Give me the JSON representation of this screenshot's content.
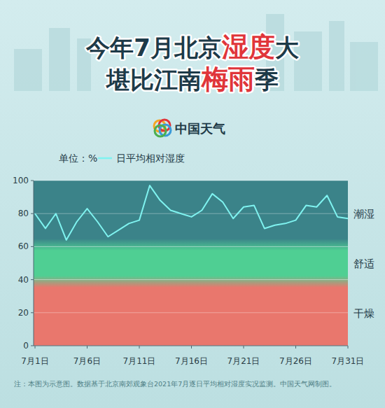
{
  "chart_data": {
    "type": "line",
    "title_lines": [
      [
        {
          "text": "今年7月北京"
        },
        {
          "text": "湿度",
          "color": "#e0353a"
        },
        {
          "text": "大"
        }
      ],
      [
        {
          "text": "堪比江南"
        },
        {
          "text": "梅雨",
          "color": "#e0353a"
        },
        {
          "text": "季"
        }
      ]
    ],
    "logo": "中国天气",
    "y_label": "单位：%",
    "categories": [
      "7月1日",
      null,
      null,
      null,
      null,
      "7月6日",
      null,
      null,
      null,
      null,
      "7月11日",
      null,
      null,
      null,
      null,
      "7月16日",
      null,
      null,
      null,
      null,
      "7月21日",
      null,
      null,
      null,
      null,
      "7月26日",
      null,
      null,
      null,
      null,
      "7月31日"
    ],
    "series": [
      {
        "name": "日平均相对湿度",
        "color": "#7ff3f0",
        "values": [
          80,
          71,
          80,
          64,
          75,
          83,
          75,
          66,
          70,
          74,
          76,
          97,
          88,
          82,
          80,
          78,
          82,
          92,
          87,
          77,
          84,
          85,
          71,
          73,
          74,
          76,
          85,
          84,
          91,
          78,
          77
        ]
      }
    ],
    "bands": [
      {
        "label": "潮湿",
        "from": 60,
        "to": 100,
        "color": "#3b8389"
      },
      {
        "label": "舒适",
        "from": 40,
        "to": 60,
        "color": "#4fcf93"
      },
      {
        "label": "干燥",
        "from": 0,
        "to": 40,
        "color": "#e9776d"
      }
    ],
    "ylim": [
      0,
      100
    ],
    "yticks": [
      0,
      20,
      40,
      60,
      80,
      100
    ],
    "grid": true,
    "legend": "top-left",
    "note": "注：本图为示意图。数据基于北京南郊观象台2021年7月逐日平均相对湿度实况监测。中国天气网制图。"
  }
}
